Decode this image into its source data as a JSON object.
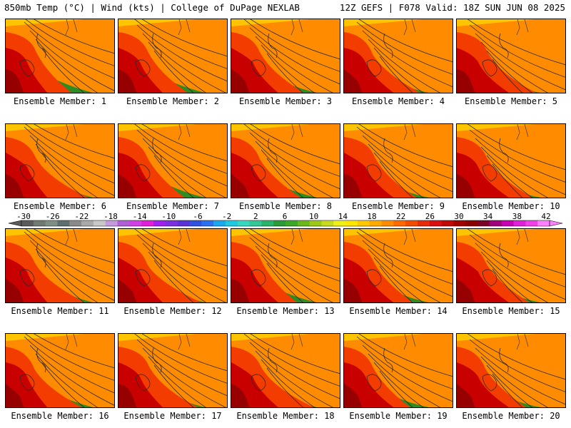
{
  "header": {
    "left_title": "850mb Temp (°C) | Wind (kts) | College of DuPage NEXLAB",
    "right_title": "12Z GEFS | F078 Valid: 18Z SUN JUN 08 2025"
  },
  "caption_prefix": "Ensemble Member: ",
  "members": [
    {
      "number": "1",
      "variant": 0
    },
    {
      "number": "2",
      "variant": 1
    },
    {
      "number": "3",
      "variant": 2
    },
    {
      "number": "4",
      "variant": 3
    },
    {
      "number": "5",
      "variant": 4
    },
    {
      "number": "6",
      "variant": 5
    },
    {
      "number": "7",
      "variant": 6
    },
    {
      "number": "8",
      "variant": 7
    },
    {
      "number": "9",
      "variant": 8
    },
    {
      "number": "10",
      "variant": 9
    },
    {
      "number": "11",
      "variant": 10
    },
    {
      "number": "12",
      "variant": 11
    },
    {
      "number": "13",
      "variant": 12
    },
    {
      "number": "14",
      "variant": 13
    },
    {
      "number": "15",
      "variant": 14
    },
    {
      "number": "16",
      "variant": 15
    },
    {
      "number": "17",
      "variant": 16
    },
    {
      "number": "18",
      "variant": 17
    },
    {
      "number": "19",
      "variant": 18
    },
    {
      "number": "20",
      "variant": 19
    }
  ],
  "colorbar": {
    "labels": [
      "-30",
      "-26",
      "-22",
      "-18",
      "-14",
      "-10",
      "-6",
      "-2",
      "2",
      "6",
      "10",
      "14",
      "18",
      "22",
      "26",
      "30",
      "34",
      "38",
      "42"
    ],
    "colors": [
      "#5a5a5a",
      "#6e7a72",
      "#7f8f85",
      "#5f6f6f",
      "#8a8a8a",
      "#a9a9a9",
      "#c8c8c8",
      "#c39adb",
      "#b05fd6",
      "#d040e6",
      "#e020d8",
      "#a020f0",
      "#7c2ee0",
      "#5a32d6",
      "#3050e0",
      "#2a70f0",
      "#18a8ee",
      "#20c8e0",
      "#38d8c0",
      "#34c896",
      "#2ab46a",
      "#2a9a3a",
      "#3ca828",
      "#6ab81e",
      "#9cc818",
      "#c8da20",
      "#eef018",
      "#ffe600",
      "#ffc800",
      "#ffaa00",
      "#ff8c00",
      "#ff6a00",
      "#f24c00",
      "#e62a0a",
      "#d81010",
      "#c00808",
      "#a00000",
      "#880000",
      "#7a0028",
      "#a0007a",
      "#c800b4",
      "#e020d8",
      "#f040e8",
      "#ff80ff"
    ]
  }
}
